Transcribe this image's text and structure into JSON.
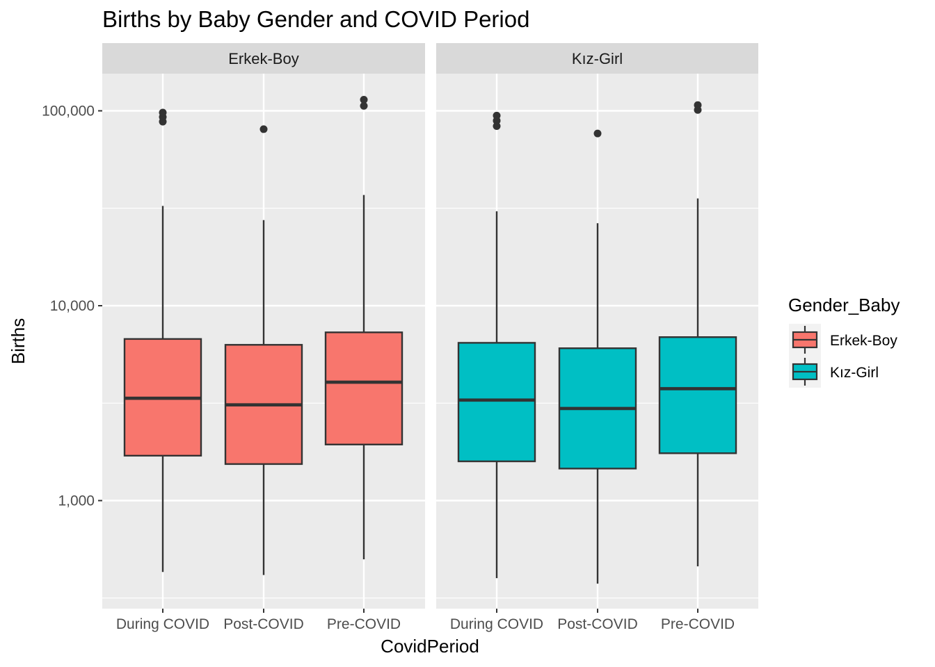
{
  "chart_data": {
    "type": "boxplot",
    "title": "Births by Baby Gender and COVID Period",
    "xlabel": "CovidPeriod",
    "ylabel": "Births",
    "y_scale": "log10",
    "ylim": [
      300,
      180000
    ],
    "y_ticks": [
      {
        "value": 1000,
        "label": "1,000"
      },
      {
        "value": 10000,
        "label": "10,000"
      },
      {
        "value": 100000,
        "label": "100,000"
      }
    ],
    "categories": [
      "During COVID",
      "Post-COVID",
      "Pre-COVID"
    ],
    "panels": [
      {
        "label": "Erkek-Boy",
        "color": "#F8766D",
        "boxes": [
          {
            "category": "During COVID",
            "lower_whisker": 430,
            "q1": 1700,
            "median": 3350,
            "q3": 6750,
            "upper_whisker": 32500,
            "outliers": [
              88000,
              93000,
              98000
            ]
          },
          {
            "category": "Post-COVID",
            "lower_whisker": 415,
            "q1": 1540,
            "median": 3100,
            "q3": 6300,
            "upper_whisker": 27500,
            "outliers": [
              80500
            ]
          },
          {
            "category": "Pre-COVID",
            "lower_whisker": 500,
            "q1": 1940,
            "median": 4050,
            "q3": 7300,
            "upper_whisker": 37000,
            "outliers": [
              106000,
              114000
            ]
          }
        ]
      },
      {
        "label": "Kız-Girl",
        "color": "#00BFC4",
        "boxes": [
          {
            "category": "During COVID",
            "lower_whisker": 400,
            "q1": 1590,
            "median": 3280,
            "q3": 6450,
            "upper_whisker": 30500,
            "outliers": [
              83500,
              89000,
              94500
            ]
          },
          {
            "category": "Post-COVID",
            "lower_whisker": 375,
            "q1": 1460,
            "median": 2970,
            "q3": 6050,
            "upper_whisker": 26500,
            "outliers": [
              76500
            ]
          },
          {
            "category": "Pre-COVID",
            "lower_whisker": 460,
            "q1": 1750,
            "median": 3750,
            "q3": 6900,
            "upper_whisker": 35500,
            "outliers": [
              101000,
              107000
            ]
          }
        ]
      }
    ],
    "legend": {
      "title": "Gender_Baby",
      "placement": "right",
      "entries": [
        {
          "label": "Erkek-Boy",
          "color": "#F8766D"
        },
        {
          "label": "Kız-Girl",
          "color": "#00BFC4"
        }
      ]
    },
    "grid": true
  }
}
